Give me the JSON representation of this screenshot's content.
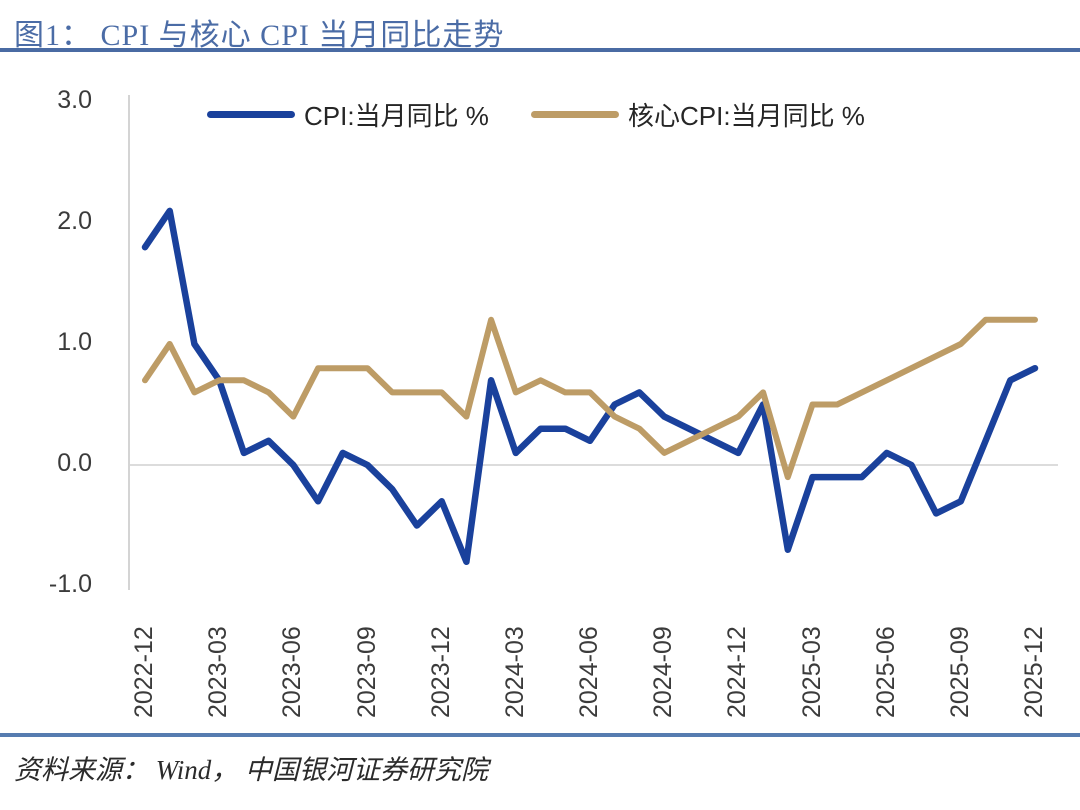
{
  "figure": {
    "title": "图1： CPI 与核心 CPI 当月同比走势",
    "source": "资料来源： Wind， 中国银河证券研究院"
  },
  "colors": {
    "title_blue": "#4b6ca6",
    "rule_blue": "#4a6ba3",
    "divider_blue": "#567cb0",
    "cpi_line": "#1a419c",
    "core_cpi_line": "#bd9c66",
    "gridline": "#dcdcdc",
    "axis_line": "#d4d4d4",
    "tick_text": "#3b3b3b"
  },
  "chart_data": {
    "type": "line",
    "title": "图1： CPI 与核心 CPI 当月同比走势",
    "xlabel": "",
    "ylabel": "",
    "x": [
      "2022-12",
      "2023-01",
      "2023-02",
      "2023-03",
      "2023-04",
      "2023-05",
      "2023-06",
      "2023-07",
      "2023-08",
      "2023-09",
      "2023-10",
      "2023-11",
      "2023-12",
      "2024-01",
      "2024-02",
      "2024-03",
      "2024-04",
      "2024-05",
      "2024-06",
      "2024-07",
      "2024-08",
      "2024-09",
      "2024-10",
      "2024-11",
      "2024-12",
      "2025-01",
      "2025-02",
      "2025-03",
      "2025-04",
      "2025-05",
      "2025-06",
      "2025-07",
      "2025-08",
      "2025-09",
      "2025-10",
      "2025-11",
      "2025-12"
    ],
    "x_tick_labels": [
      "2022-12",
      "2023-03",
      "2023-06",
      "2023-09",
      "2023-12",
      "2024-03",
      "2024-06",
      "2024-09",
      "2024-12",
      "2025-03",
      "2025-06",
      "2025-09",
      "2025-12"
    ],
    "series": [
      {
        "name": "CPI:当月同比 %",
        "color": "#1a419c",
        "values": [
          1.8,
          2.1,
          1.0,
          0.7,
          0.1,
          0.2,
          0.0,
          -0.3,
          0.1,
          0.0,
          -0.2,
          -0.5,
          -0.3,
          -0.8,
          0.7,
          0.1,
          0.3,
          0.3,
          0.2,
          0.5,
          0.6,
          0.4,
          0.3,
          0.2,
          0.1,
          0.5,
          -0.7,
          -0.1,
          -0.1,
          -0.1,
          0.1,
          0.0,
          -0.4,
          -0.3,
          0.2,
          0.7,
          0.8
        ]
      },
      {
        "name": "核心CPI:当月同比 %",
        "color": "#bd9c66",
        "values": [
          0.7,
          1.0,
          0.6,
          0.7,
          0.7,
          0.6,
          0.4,
          0.8,
          0.8,
          0.8,
          0.6,
          0.6,
          0.6,
          0.4,
          1.2,
          0.6,
          0.7,
          0.6,
          0.6,
          0.4,
          0.3,
          0.1,
          0.2,
          0.3,
          0.4,
          0.6,
          -0.1,
          0.5,
          0.5,
          0.6,
          0.7,
          0.8,
          0.9,
          1.0,
          1.2,
          1.2,
          1.2
        ]
      }
    ],
    "ylim": [
      -1.0,
      3.0
    ],
    "yticks": [
      3.0,
      2.0,
      1.0,
      0.0,
      -1.0
    ],
    "ytick_labels": [
      "3.0",
      "2.0",
      "1.0",
      "0.0",
      "-1.0"
    ],
    "grid": "horizontal zero line only",
    "legend_position": "top"
  }
}
